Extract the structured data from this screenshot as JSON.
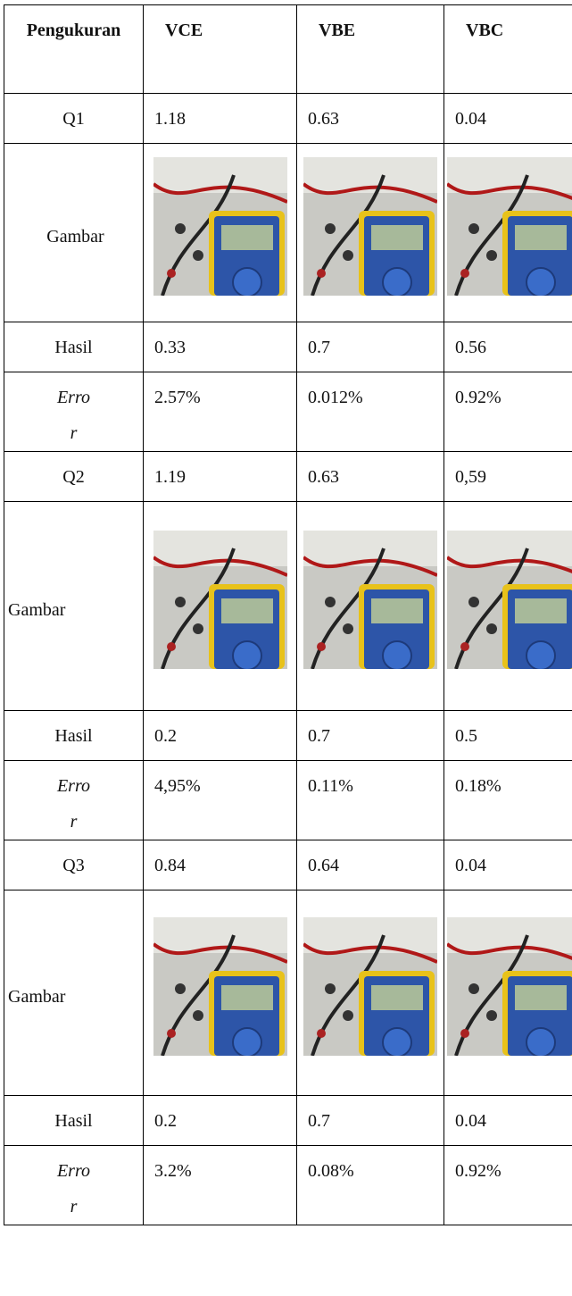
{
  "table": {
    "header": [
      "Pengukuran",
      "VCE",
      "VBE",
      "VBC"
    ],
    "rows": [
      [
        "Q1",
        "1.18",
        "0.63",
        "0.04"
      ],
      [
        "Gambar"
      ],
      [
        "Hasil",
        "0.33",
        "0.7",
        "0.56"
      ],
      [
        "Error",
        "2.57%",
        "0.012%",
        "0.92%"
      ],
      [
        "Q2",
        "1.19",
        "0.63",
        "0,59"
      ],
      [
        "Gambar"
      ],
      [
        "Hasil",
        "0.2",
        "0.7",
        "0.5"
      ],
      [
        "Error",
        "4,95%",
        "0.11%",
        "0.18%"
      ],
      [
        "Q3",
        "0.84",
        "0.64",
        "0.04"
      ],
      [
        "Gambar"
      ],
      [
        "Hasil",
        "0.2",
        "0.7",
        "0.04"
      ],
      [
        "Error",
        "3.2%",
        "0.08%",
        "0.92%"
      ]
    ]
  }
}
